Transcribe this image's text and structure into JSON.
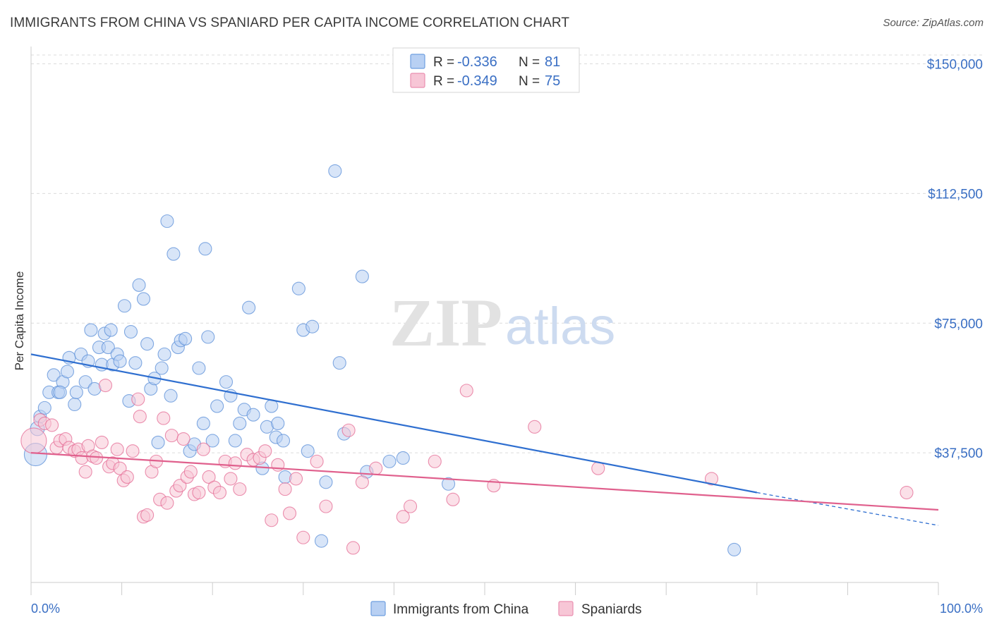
{
  "title": "IMMIGRANTS FROM CHINA VS SPANIARD PER CAPITA INCOME CORRELATION CHART",
  "source": "Source: ZipAtlas.com",
  "watermark": {
    "zip": "ZIP",
    "atlas": "atlas"
  },
  "legend_top": [
    {
      "r_label": "R = ",
      "r_value": "-0.336",
      "n_label": "N = ",
      "n_value": "81",
      "color": "#6f9fe0",
      "fill": "#b8d0f3"
    },
    {
      "r_label": "R = ",
      "r_value": "-0.349",
      "n_label": "N = ",
      "n_value": "75",
      "color": "#ea8fb0",
      "fill": "#f7c6d6"
    }
  ],
  "chart_data": {
    "type": "scatter",
    "title": "IMMIGRANTS FROM CHINA VS SPANIARD PER CAPITA INCOME CORRELATION CHART",
    "xlabel": "",
    "ylabel": "Per Capita Income",
    "xlim": [
      0,
      100
    ],
    "ylim": [
      0,
      155000
    ],
    "x_tick_labels": [
      "0.0%",
      "100.0%"
    ],
    "y_ticks": [
      37500,
      75000,
      112500,
      150000
    ],
    "y_tick_labels": [
      "$37,500",
      "$75,000",
      "$112,500",
      "$150,000"
    ],
    "grid": true,
    "legend_position": "bottom",
    "series": [
      {
        "name": "Immigrants from China",
        "color": "#5b8fd8",
        "fill": "#b8d0f3",
        "trend": {
          "x0": 0,
          "y0": 66000,
          "x1": 80,
          "y1": 26000,
          "dash_to_x": 100,
          "dash_to_y": 16500
        },
        "points": [
          [
            0.5,
            37000,
            16
          ],
          [
            0.7,
            44500,
            10
          ],
          [
            1.0,
            48000,
            9
          ],
          [
            1.5,
            50500,
            9
          ],
          [
            2.0,
            55000,
            9
          ],
          [
            2.5,
            60000,
            9
          ],
          [
            3.0,
            55000,
            9
          ],
          [
            3.5,
            58000,
            9
          ],
          [
            4.0,
            61000,
            9
          ],
          [
            4.2,
            65000,
            9
          ],
          [
            4.8,
            51500,
            9
          ],
          [
            5.0,
            55000,
            9
          ],
          [
            5.5,
            66000,
            9
          ],
          [
            6.0,
            58000,
            9
          ],
          [
            6.3,
            64000,
            9
          ],
          [
            6.6,
            73000,
            9
          ],
          [
            7.0,
            56000,
            9
          ],
          [
            7.5,
            68000,
            9
          ],
          [
            7.8,
            63000,
            9
          ],
          [
            8.1,
            72000,
            9
          ],
          [
            8.5,
            68000,
            9
          ],
          [
            8.8,
            73000,
            9
          ],
          [
            9.0,
            63000,
            9
          ],
          [
            9.5,
            66000,
            9
          ],
          [
            9.8,
            64000,
            9
          ],
          [
            10.3,
            80000,
            9
          ],
          [
            10.8,
            52500,
            9
          ],
          [
            11.0,
            72500,
            9
          ],
          [
            11.5,
            63500,
            9
          ],
          [
            11.9,
            86000,
            9
          ],
          [
            12.4,
            82000,
            9
          ],
          [
            12.8,
            69000,
            9
          ],
          [
            13.2,
            56000,
            9
          ],
          [
            13.6,
            59000,
            9
          ],
          [
            14.0,
            40500,
            9
          ],
          [
            14.4,
            62000,
            9
          ],
          [
            14.7,
            66000,
            9
          ],
          [
            15.0,
            104500,
            9
          ],
          [
            15.4,
            54000,
            9
          ],
          [
            15.7,
            95000,
            9
          ],
          [
            16.2,
            68000,
            9
          ],
          [
            16.5,
            70000,
            9
          ],
          [
            17.5,
            38000,
            9
          ],
          [
            18.0,
            40000,
            9
          ],
          [
            18.5,
            62000,
            9
          ],
          [
            19.0,
            46000,
            9
          ],
          [
            19.2,
            96500,
            9
          ],
          [
            19.5,
            71000,
            9
          ],
          [
            20.0,
            41000,
            9
          ],
          [
            20.5,
            51000,
            9
          ],
          [
            21.5,
            58000,
            9
          ],
          [
            22.0,
            54000,
            9
          ],
          [
            22.5,
            41000,
            9
          ],
          [
            23.0,
            46000,
            9
          ],
          [
            23.5,
            50000,
            9
          ],
          [
            24.0,
            79500,
            9
          ],
          [
            24.5,
            48500,
            9
          ],
          [
            25.5,
            33000,
            9
          ],
          [
            26.0,
            45000,
            9
          ],
          [
            26.5,
            51000,
            9
          ],
          [
            27.0,
            42000,
            9
          ],
          [
            27.2,
            46000,
            9
          ],
          [
            27.8,
            41000,
            9
          ],
          [
            28.0,
            30500,
            9
          ],
          [
            29.5,
            85000,
            9
          ],
          [
            30.0,
            73000,
            9
          ],
          [
            30.5,
            38000,
            9
          ],
          [
            31.0,
            74000,
            9
          ],
          [
            32.0,
            12000,
            9
          ],
          [
            32.5,
            29000,
            9
          ],
          [
            33.5,
            119000,
            9
          ],
          [
            34.0,
            63500,
            9
          ],
          [
            34.5,
            43000,
            9
          ],
          [
            36.5,
            88500,
            9
          ],
          [
            37.0,
            32000,
            9
          ],
          [
            39.5,
            35000,
            9
          ],
          [
            41.0,
            36000,
            9
          ],
          [
            46.0,
            28500,
            9
          ],
          [
            77.5,
            9500,
            9
          ],
          [
            3.2,
            55000,
            9
          ],
          [
            17.0,
            70500,
            9
          ]
        ]
      },
      {
        "name": "Spaniards",
        "color": "#e46b94",
        "fill": "#f7c6d6",
        "trend": {
          "x0": 0,
          "y0": 37500,
          "x1": 100,
          "y1": 21000
        },
        "points": [
          [
            0.3,
            41000,
            18
          ],
          [
            1.0,
            47000,
            9
          ],
          [
            1.5,
            46000,
            9
          ],
          [
            2.3,
            45500,
            9
          ],
          [
            2.8,
            39000,
            9
          ],
          [
            3.2,
            41000,
            9
          ],
          [
            3.8,
            41500,
            9
          ],
          [
            4.2,
            39000,
            9
          ],
          [
            4.8,
            38000,
            9
          ],
          [
            5.2,
            38500,
            9
          ],
          [
            5.6,
            36000,
            9
          ],
          [
            6.0,
            32000,
            9
          ],
          [
            6.3,
            39500,
            9
          ],
          [
            6.8,
            36500,
            9
          ],
          [
            7.2,
            36000,
            9
          ],
          [
            7.8,
            40500,
            9
          ],
          [
            8.2,
            57000,
            9
          ],
          [
            8.6,
            33500,
            9
          ],
          [
            9.0,
            34500,
            9
          ],
          [
            9.5,
            38500,
            9
          ],
          [
            9.8,
            33000,
            9
          ],
          [
            10.2,
            29500,
            9
          ],
          [
            10.6,
            30500,
            9
          ],
          [
            11.2,
            38000,
            9
          ],
          [
            11.8,
            53000,
            9
          ],
          [
            12.0,
            48000,
            9
          ],
          [
            12.4,
            19000,
            9
          ],
          [
            12.8,
            19500,
            9
          ],
          [
            13.3,
            32000,
            9
          ],
          [
            13.8,
            35000,
            9
          ],
          [
            14.2,
            24000,
            9
          ],
          [
            14.6,
            47500,
            9
          ],
          [
            15.0,
            23000,
            9
          ],
          [
            15.5,
            42500,
            9
          ],
          [
            16.0,
            26500,
            9
          ],
          [
            16.4,
            28000,
            9
          ],
          [
            16.8,
            41500,
            9
          ],
          [
            17.2,
            30500,
            9
          ],
          [
            17.6,
            32000,
            9
          ],
          [
            18.0,
            25500,
            9
          ],
          [
            18.5,
            26000,
            9
          ],
          [
            19.0,
            38500,
            9
          ],
          [
            19.6,
            30500,
            9
          ],
          [
            20.2,
            27500,
            9
          ],
          [
            20.8,
            26000,
            9
          ],
          [
            21.4,
            35000,
            9
          ],
          [
            22.0,
            30000,
            9
          ],
          [
            22.5,
            34500,
            9
          ],
          [
            23.0,
            27000,
            9
          ],
          [
            23.8,
            37000,
            9
          ],
          [
            24.5,
            35500,
            9
          ],
          [
            25.2,
            36000,
            9
          ],
          [
            25.8,
            38000,
            9
          ],
          [
            26.5,
            18000,
            9
          ],
          [
            27.2,
            34000,
            9
          ],
          [
            28.0,
            27000,
            9
          ],
          [
            28.5,
            20000,
            9
          ],
          [
            29.2,
            30000,
            9
          ],
          [
            30.0,
            13000,
            9
          ],
          [
            31.5,
            35000,
            9
          ],
          [
            32.5,
            22000,
            9
          ],
          [
            35.0,
            44000,
            9
          ],
          [
            35.5,
            10000,
            9
          ],
          [
            36.5,
            29000,
            9
          ],
          [
            38.0,
            33000,
            9
          ],
          [
            41.0,
            19000,
            9
          ],
          [
            41.8,
            22000,
            9
          ],
          [
            44.5,
            35000,
            9
          ],
          [
            46.5,
            24000,
            9
          ],
          [
            48.0,
            55500,
            9
          ],
          [
            51.0,
            28000,
            9
          ],
          [
            55.5,
            45000,
            9
          ],
          [
            62.5,
            33000,
            9
          ],
          [
            75.0,
            30000,
            9
          ],
          [
            96.5,
            26000,
            9
          ]
        ]
      }
    ]
  }
}
